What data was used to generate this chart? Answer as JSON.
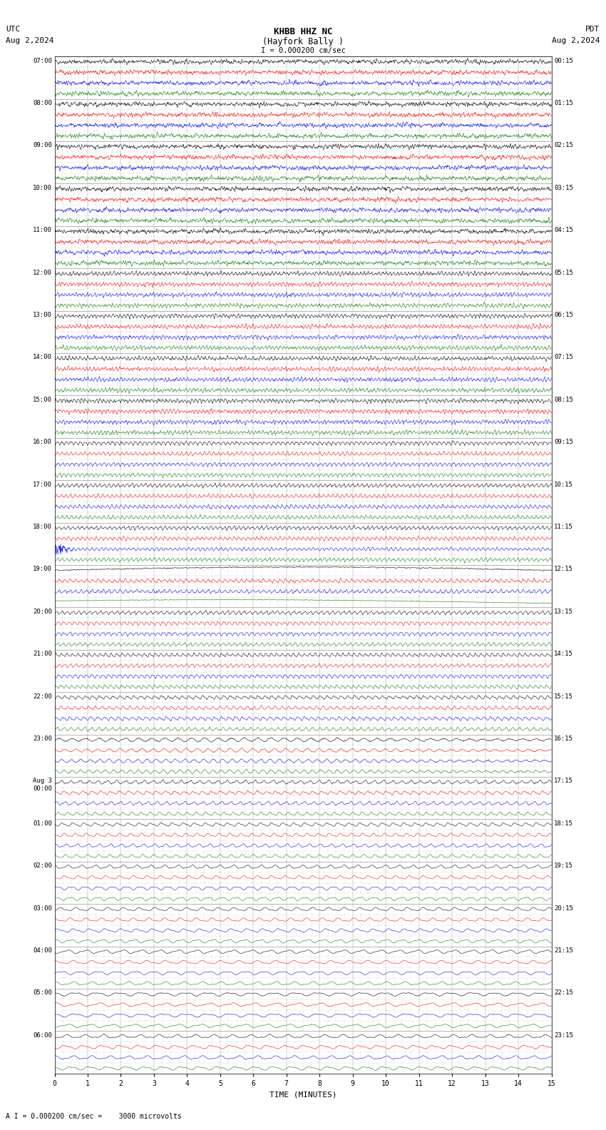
{
  "title_line1": "KHBB HHZ NC",
  "title_line2": "(Hayfork Bally )",
  "title_scale": "I = 0.000200 cm/sec",
  "left_label_line1": "UTC",
  "left_label_line2": "Aug 2,2024",
  "right_label_line1": "PDT",
  "right_label_line2": "Aug 2,2024",
  "bottom_label": "TIME (MINUTES)",
  "bottom_note": "A I = 0.000200 cm/sec =    3000 microvolts",
  "xlabel_ticks": [
    0,
    1,
    2,
    3,
    4,
    5,
    6,
    7,
    8,
    9,
    10,
    11,
    12,
    13,
    14,
    15
  ],
  "background_color": "#ffffff",
  "trace_colors": [
    "black",
    "red",
    "blue",
    "green"
  ],
  "utc_labels": [
    "07:00",
    "08:00",
    "09:00",
    "10:00",
    "11:00",
    "12:00",
    "13:00",
    "14:00",
    "15:00",
    "16:00",
    "17:00",
    "18:00",
    "19:00",
    "20:00",
    "21:00",
    "22:00",
    "23:00",
    "Aug 3\n00:00",
    "01:00",
    "02:00",
    "03:00",
    "04:00",
    "05:00",
    "06:00"
  ],
  "pdt_labels": [
    "00:15",
    "01:15",
    "02:15",
    "03:15",
    "04:15",
    "05:15",
    "06:15",
    "07:15",
    "08:15",
    "09:15",
    "10:15",
    "11:15",
    "12:15",
    "13:15",
    "14:15",
    "15:15",
    "16:15",
    "17:15",
    "18:15",
    "19:15",
    "20:15",
    "21:15",
    "22:15",
    "23:15"
  ],
  "n_rows": 24,
  "n_traces_per_row": 4,
  "minutes": 15,
  "fig_width": 8.5,
  "fig_height": 15.84,
  "dpi": 100
}
